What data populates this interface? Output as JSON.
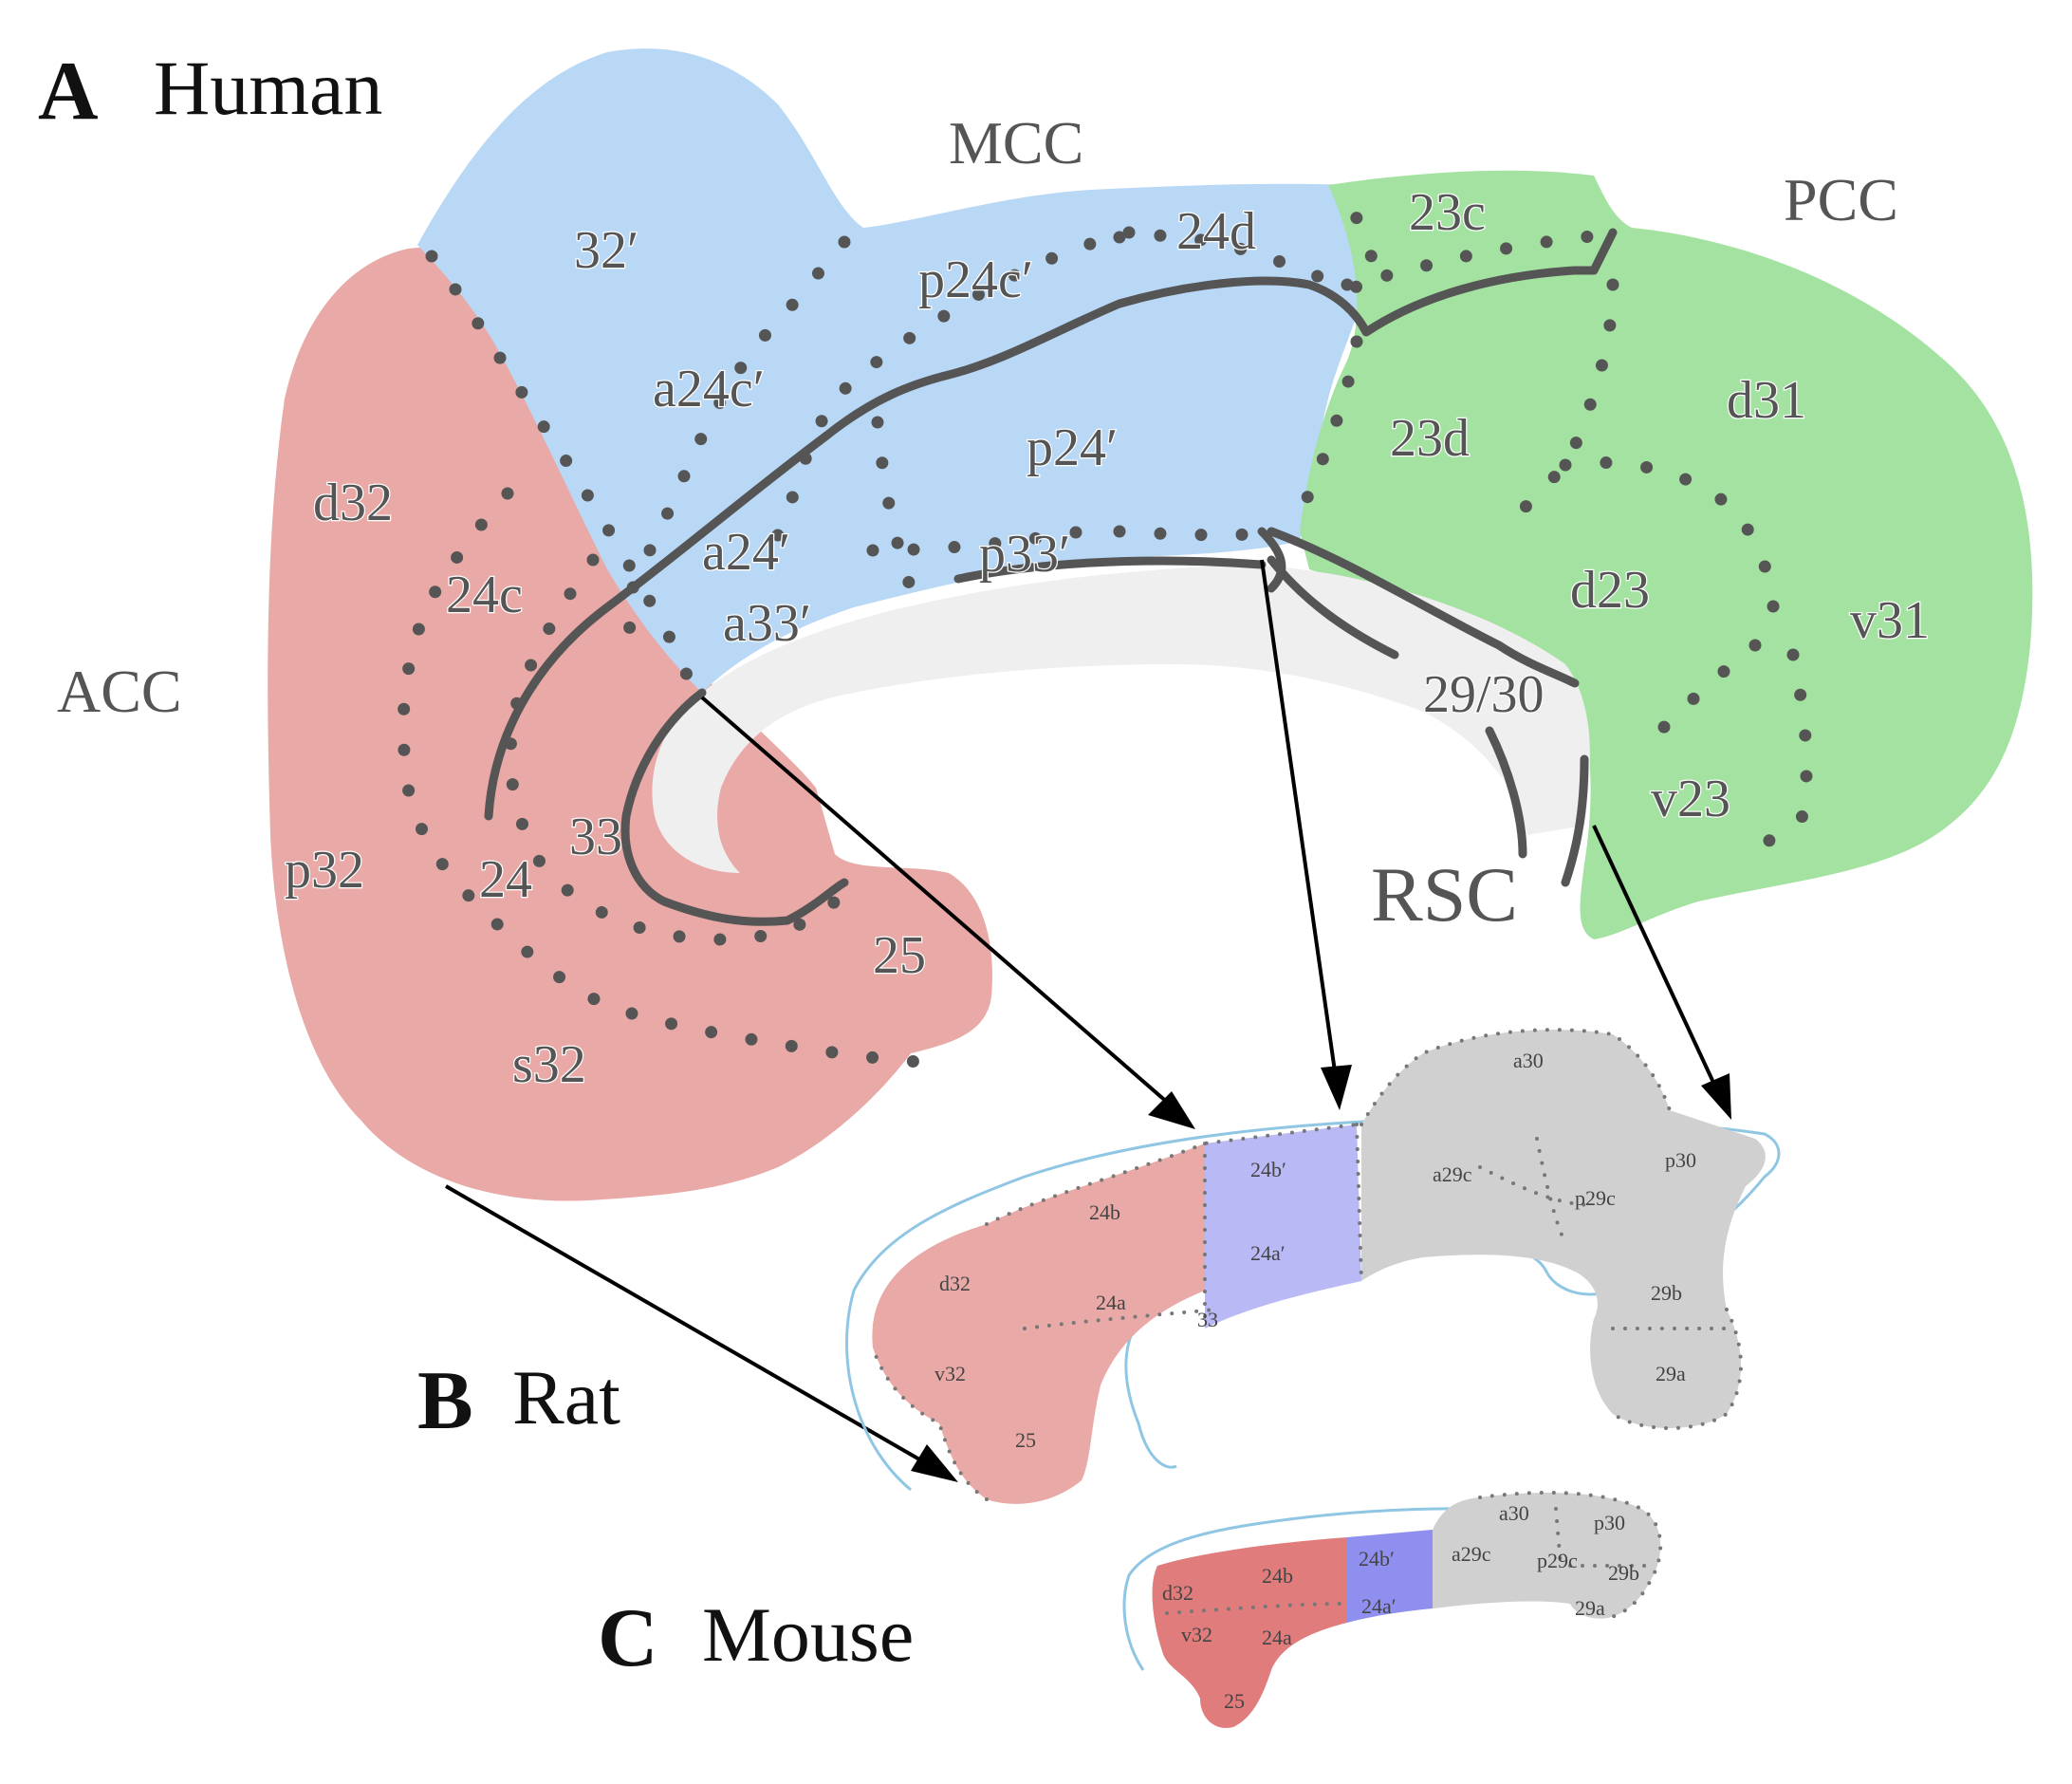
{
  "panels": {
    "a": {
      "letter": "A",
      "name": "Human"
    },
    "b": {
      "letter": "B",
      "name": "Rat"
    },
    "c": {
      "letter": "C",
      "name": "Mouse"
    }
  },
  "regions": {
    "mcc": "MCC",
    "pcc": "PCC",
    "acc": "ACC",
    "rsc": "RSC"
  },
  "human_areas": {
    "a32p": "32′",
    "p24cp": "p24c′",
    "d24": "24d",
    "c23": "23c",
    "a24cp": "a24c′",
    "p24p": "p24′",
    "d23a": "23d",
    "d31": "d31",
    "d32": "d32",
    "c24": "24c",
    "a24p": "a24′",
    "p33p": "p33′",
    "a33p": "a33′",
    "d23": "d23",
    "v31": "v31",
    "r2930": "29/30",
    "p32": "p32",
    "a24": "24",
    "a33": "33",
    "v23": "v23",
    "a25": "25",
    "s32": "s32"
  },
  "rat_areas": {
    "a30": "a30",
    "p30": "p30",
    "a29c": "a29c",
    "p29c": "p29c",
    "b24p": "24b′",
    "b24": "24b",
    "a24p": "24a′",
    "d32": "d32",
    "a24": "24a",
    "a33": "33",
    "b29": "29b",
    "v32": "v32",
    "a29": "29a",
    "a25": "25"
  },
  "mouse_areas": {
    "a30": "a30",
    "p30": "p30",
    "a29c": "a29c",
    "p29c": "p29c",
    "b29": "29b",
    "a29": "29a",
    "b24": "24b",
    "b24p": "24b′",
    "a24p": "24a′",
    "d32": "d32",
    "v32": "v32",
    "a24": "24a",
    "a25": "25"
  },
  "colors": {
    "acc": "#e9a9a6",
    "mcc": "#b9d8f5",
    "pcc": "#a3e2a0",
    "rsc": "#d0d0d0",
    "callosum": "#efefef",
    "rat_mcc": "#b9b9f5",
    "mouse_acc": "#e07c7c",
    "mouse_mcc": "#8f8ff0"
  }
}
